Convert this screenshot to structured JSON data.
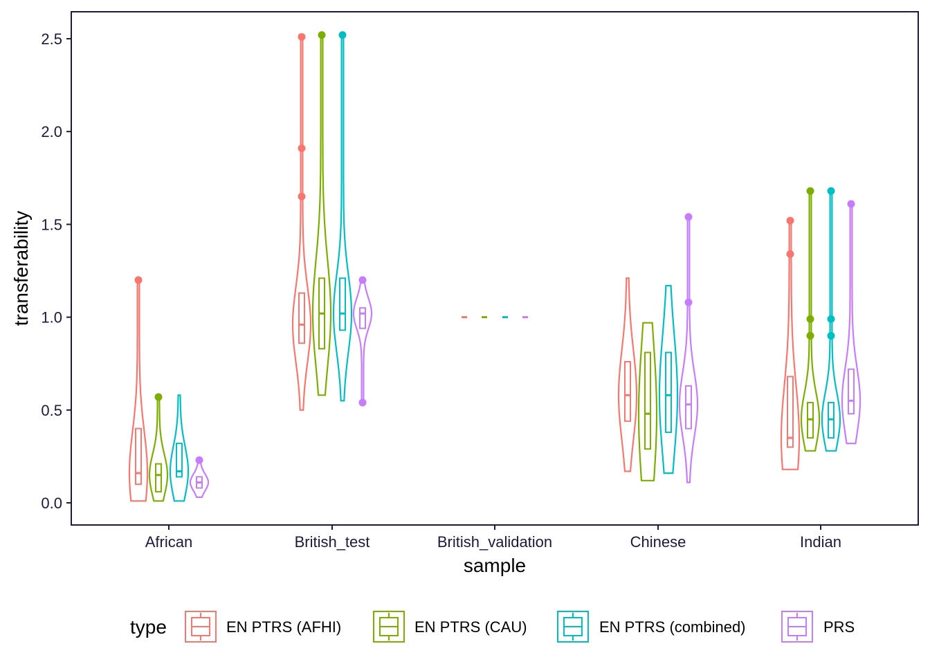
{
  "chart_data": {
    "type": "violin",
    "xlabel": "sample",
    "ylabel": "transferability",
    "ylim": [
      -0.12,
      2.62
    ],
    "yticks": [
      "0.0",
      "0.5",
      "1.0",
      "1.5",
      "2.0",
      "2.5"
    ],
    "categories": [
      "African",
      "British_test",
      "British_validation",
      "Chinese",
      "Indian"
    ],
    "legend": {
      "title": "type",
      "position": "bottom"
    },
    "series": [
      {
        "name": "EN PTRS (AFHI)",
        "color": "#F8766D",
        "groups": [
          {
            "min": 0.01,
            "max": 1.2,
            "q1": 0.1,
            "median": 0.16,
            "q3": 0.4,
            "outliers": [
              1.2
            ]
          },
          {
            "min": 0.5,
            "max": 2.51,
            "q1": 0.86,
            "median": 0.96,
            "q3": 1.13,
            "outliers": [
              1.65,
              1.91,
              2.51
            ]
          },
          {
            "min": 1.0,
            "max": 1.0,
            "q1": 1.0,
            "median": 1.0,
            "q3": 1.0,
            "outliers": []
          },
          {
            "min": 0.17,
            "max": 1.21,
            "q1": 0.44,
            "median": 0.58,
            "q3": 0.76,
            "outliers": []
          },
          {
            "min": 0.18,
            "max": 1.52,
            "q1": 0.3,
            "median": 0.35,
            "q3": 0.68,
            "outliers": [
              1.34,
              1.52
            ]
          }
        ]
      },
      {
        "name": "EN PTRS (CAU)",
        "color": "#7CAE00",
        "groups": [
          {
            "min": 0.01,
            "max": 0.57,
            "q1": 0.06,
            "median": 0.15,
            "q3": 0.21,
            "outliers": [
              0.57
            ]
          },
          {
            "min": 0.58,
            "max": 2.52,
            "q1": 0.83,
            "median": 1.02,
            "q3": 1.21,
            "outliers": [
              2.52
            ]
          },
          {
            "min": 1.0,
            "max": 1.0,
            "q1": 1.0,
            "median": 1.0,
            "q3": 1.0,
            "outliers": []
          },
          {
            "min": 0.12,
            "max": 0.97,
            "q1": 0.29,
            "median": 0.48,
            "q3": 0.81,
            "outliers": []
          },
          {
            "min": 0.28,
            "max": 1.68,
            "q1": 0.35,
            "median": 0.45,
            "q3": 0.54,
            "outliers": [
              0.9,
              0.99,
              1.68
            ]
          }
        ]
      },
      {
        "name": "EN PTRS (combined)",
        "color": "#00BFC4",
        "groups": [
          {
            "min": 0.01,
            "max": 0.58,
            "q1": 0.14,
            "median": 0.17,
            "q3": 0.32,
            "outliers": []
          },
          {
            "min": 0.55,
            "max": 2.52,
            "q1": 0.93,
            "median": 1.02,
            "q3": 1.21,
            "outliers": [
              2.52
            ]
          },
          {
            "min": 1.0,
            "max": 1.0,
            "q1": 1.0,
            "median": 1.0,
            "q3": 1.0,
            "outliers": []
          },
          {
            "min": 0.16,
            "max": 1.17,
            "q1": 0.38,
            "median": 0.58,
            "q3": 0.81,
            "outliers": []
          },
          {
            "min": 0.28,
            "max": 1.68,
            "q1": 0.35,
            "median": 0.45,
            "q3": 0.54,
            "outliers": [
              0.9,
              0.99,
              1.68
            ]
          }
        ]
      },
      {
        "name": "PRS",
        "color": "#C77CFF",
        "groups": [
          {
            "min": 0.03,
            "max": 0.23,
            "q1": 0.08,
            "median": 0.11,
            "q3": 0.14,
            "outliers": [
              0.23
            ]
          },
          {
            "min": 0.54,
            "max": 1.2,
            "q1": 0.94,
            "median": 1.02,
            "q3": 1.05,
            "outliers": [
              0.54,
              1.2
            ]
          },
          {
            "min": 1.0,
            "max": 1.0,
            "q1": 1.0,
            "median": 1.0,
            "q3": 1.0,
            "outliers": []
          },
          {
            "min": 0.11,
            "max": 1.54,
            "q1": 0.4,
            "median": 0.53,
            "q3": 0.63,
            "outliers": [
              1.08,
              1.54
            ]
          },
          {
            "min": 0.32,
            "max": 1.61,
            "q1": 0.48,
            "median": 0.55,
            "q3": 0.72,
            "outliers": [
              1.61
            ]
          }
        ]
      }
    ]
  }
}
